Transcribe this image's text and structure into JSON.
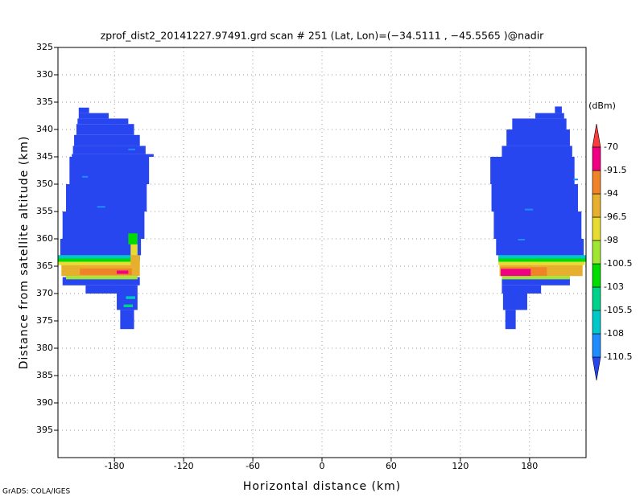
{
  "chart_data": {
    "type": "heatmap",
    "title": "zprof_dist2_20141227.97491.grd  scan # 251  (Lat, Lon)=(−34.5111 , −45.5565 )@nadir",
    "x_label": "Horizontal distance (km)",
    "y_label": "Distance from satellite altitude (km)",
    "footer": "GrADS: COLA/IGES",
    "xlim": [
      -229,
      229
    ],
    "ylim": [
      325,
      400
    ],
    "y_inverted": true,
    "xticks": [
      -180,
      -120,
      -60,
      0,
      60,
      120,
      180
    ],
    "yticks": [
      325,
      330,
      335,
      340,
      345,
      350,
      355,
      360,
      365,
      370,
      375,
      380,
      385,
      390,
      395
    ],
    "grid": true,
    "colorbar": {
      "label": "(dBm)",
      "levels": [
        -110.5,
        -108,
        -105.5,
        -103,
        -100.5,
        -98,
        -96.5,
        -94,
        -91.5,
        -70
      ],
      "colors": [
        "#2846f0",
        "#1e8cff",
        "#00c8c8",
        "#00d28c",
        "#00dc00",
        "#a0e632",
        "#e6dc32",
        "#e6af2d",
        "#f08228",
        "#f00082",
        "#fa3c3c"
      ]
    },
    "cells": [
      {
        "x": [
          -211,
          -202
        ],
        "y": [
          336,
          337
        ],
        "value": -115
      },
      {
        "x": [
          -211,
          -185
        ],
        "y": [
          337,
          338
        ],
        "value": -115
      },
      {
        "x": [
          -212,
          -168
        ],
        "y": [
          338,
          339
        ],
        "value": -115
      },
      {
        "x": [
          -213,
          -163
        ],
        "y": [
          339,
          341
        ],
        "value": -115
      },
      {
        "x": [
          -215,
          -158
        ],
        "y": [
          341,
          343
        ],
        "value": -115
      },
      {
        "x": [
          -216,
          -153
        ],
        "y": [
          343,
          344.5
        ],
        "value": -115
      },
      {
        "x": [
          -217,
          -146
        ],
        "y": [
          344.5,
          345
        ],
        "value": -115
      },
      {
        "x": [
          -219,
          -150
        ],
        "y": [
          345,
          350
        ],
        "value": -115
      },
      {
        "x": [
          -222,
          -152
        ],
        "y": [
          350,
          355
        ],
        "value": -115
      },
      {
        "x": [
          -225,
          -154
        ],
        "y": [
          355,
          360
        ],
        "value": -115
      },
      {
        "x": [
          -227,
          -157
        ],
        "y": [
          360,
          363
        ],
        "value": -115
      },
      {
        "x": [
          -229,
          -158
        ],
        "y": [
          363,
          364
        ],
        "value": -115
      },
      {
        "x": [
          -225,
          -158
        ],
        "y": [
          367,
          368.5
        ],
        "value": -115
      },
      {
        "x": [
          -205,
          -160
        ],
        "y": [
          368.5,
          370
        ],
        "value": -115
      },
      {
        "x": [
          -178,
          -160
        ],
        "y": [
          370,
          373
        ],
        "value": -115
      },
      {
        "x": [
          -175,
          -163
        ],
        "y": [
          373,
          376.5
        ],
        "value": -115
      },
      {
        "x": [
          -208,
          -203
        ],
        "y": [
          348.5,
          348.8
        ],
        "value": -109
      },
      {
        "x": [
          -195,
          -188
        ],
        "y": [
          354,
          354.3
        ],
        "value": -109
      },
      {
        "x": [
          -168,
          -162
        ],
        "y": [
          343.5,
          343.8
        ],
        "value": -109
      },
      {
        "x": [
          -170,
          -162
        ],
        "y": [
          370.5,
          371
        ],
        "value": -107
      },
      {
        "x": [
          -172,
          -164
        ],
        "y": [
          372,
          372.5
        ],
        "value": -104
      },
      {
        "x": [
          -229,
          -158
        ],
        "y": [
          363,
          363.6
        ],
        "value": -107
      },
      {
        "x": [
          -229,
          -158
        ],
        "y": [
          363.6,
          364.2
        ],
        "value": -101.5
      },
      {
        "x": [
          -229,
          -158
        ],
        "y": [
          364.2,
          364.8
        ],
        "value": -97
      },
      {
        "x": [
          -226,
          -158
        ],
        "y": [
          364.8,
          366.8
        ],
        "value": -95
      },
      {
        "x": [
          -210,
          -165
        ],
        "y": [
          365.4,
          366.6
        ],
        "value": -93
      },
      {
        "x": [
          -178,
          -168
        ],
        "y": [
          365.8,
          366.4
        ],
        "value": -85
      },
      {
        "x": [
          -222,
          -160
        ],
        "y": [
          366.8,
          367.4
        ],
        "value": -99
      },
      {
        "x": [
          -168,
          -160
        ],
        "y": [
          359,
          361
        ],
        "value": -101.5
      },
      {
        "x": [
          -166,
          -160
        ],
        "y": [
          361,
          363
        ],
        "value": -97
      },
      {
        "x": [
          -166,
          -158
        ],
        "y": [
          363,
          365
        ],
        "value": -95
      },
      {
        "x": [
          202,
          208
        ],
        "y": [
          335.8,
          337
        ],
        "value": -115
      },
      {
        "x": [
          185,
          210
        ],
        "y": [
          337,
          338
        ],
        "value": -115
      },
      {
        "x": [
          165,
          212
        ],
        "y": [
          338,
          340
        ],
        "value": -115
      },
      {
        "x": [
          160,
          215
        ],
        "y": [
          340,
          343
        ],
        "value": -115
      },
      {
        "x": [
          156,
          217
        ],
        "y": [
          343,
          345
        ],
        "value": -115
      },
      {
        "x": [
          146,
          219
        ],
        "y": [
          345,
          350
        ],
        "value": -115
      },
      {
        "x": [
          147,
          222
        ],
        "y": [
          350,
          355
        ],
        "value": -115
      },
      {
        "x": [
          149,
          225
        ],
        "y": [
          355,
          360
        ],
        "value": -115
      },
      {
        "x": [
          151,
          227
        ],
        "y": [
          360,
          363
        ],
        "value": -115
      },
      {
        "x": [
          153,
          229
        ],
        "y": [
          363,
          364
        ],
        "value": -115
      },
      {
        "x": [
          156,
          215
        ],
        "y": [
          367,
          368.5
        ],
        "value": -115
      },
      {
        "x": [
          156,
          190
        ],
        "y": [
          368.5,
          370
        ],
        "value": -115
      },
      {
        "x": [
          157,
          178
        ],
        "y": [
          370,
          373
        ],
        "value": -115
      },
      {
        "x": [
          159,
          168
        ],
        "y": [
          373,
          376.5
        ],
        "value": -115
      },
      {
        "x": [
          176,
          183
        ],
        "y": [
          354.5,
          354.8
        ],
        "value": -109
      },
      {
        "x": [
          170,
          176
        ],
        "y": [
          360,
          360.3
        ],
        "value": -109
      },
      {
        "x": [
          218,
          222
        ],
        "y": [
          349,
          349.3
        ],
        "value": -109
      },
      {
        "x": [
          153,
          229
        ],
        "y": [
          363,
          363.6
        ],
        "value": -107
      },
      {
        "x": [
          153,
          229
        ],
        "y": [
          363.6,
          364.2
        ],
        "value": -101.5
      },
      {
        "x": [
          153,
          228
        ],
        "y": [
          364.2,
          364.8
        ],
        "value": -97
      },
      {
        "x": [
          154,
          226
        ],
        "y": [
          364.8,
          366.8
        ],
        "value": -95
      },
      {
        "x": [
          155,
          195
        ],
        "y": [
          365.2,
          366.8
        ],
        "value": -93
      },
      {
        "x": [
          155,
          181
        ],
        "y": [
          365.5,
          366.8
        ],
        "value": -85
      },
      {
        "x": [
          156,
          215
        ],
        "y": [
          366.8,
          367.4
        ],
        "value": -99
      }
    ]
  }
}
